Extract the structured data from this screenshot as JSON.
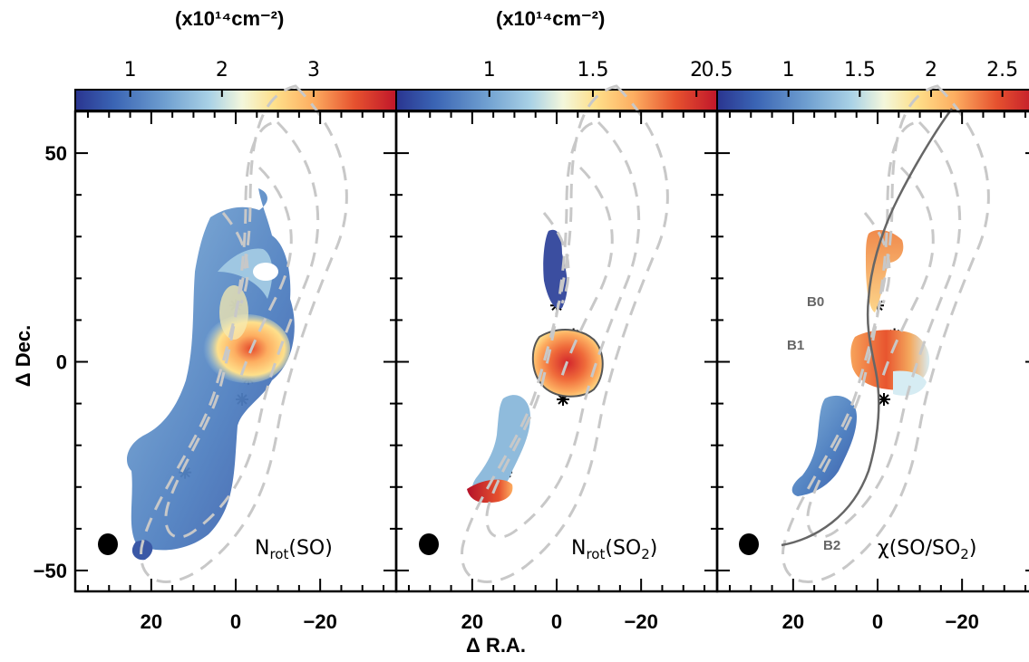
{
  "units": {
    "panel_1": "(x10¹⁴cm⁻²)",
    "panel_2": "(x10¹⁴cm⁻²)"
  },
  "axes": {
    "ylabel": "Δ Dec.",
    "xlabel": "Δ R.A."
  },
  "chart_data": [
    {
      "type": "heatmap",
      "label": "N_rot(SO)",
      "label_main": "N",
      "label_sub": "rot",
      "label_tail": "(SO)",
      "colorbar_ticks": [
        "1",
        "2",
        "3"
      ],
      "colorbar_range": [
        0.4,
        3.9
      ],
      "xlim": [
        38,
        -38
      ],
      "ylim": [
        -55,
        60
      ],
      "xticks": [
        "20",
        "0",
        "−20"
      ],
      "yticks": [
        "50",
        "0",
        "−50"
      ],
      "stars": [
        [
          0,
          13.5
        ],
        [
          1,
          3
        ],
        [
          -4,
          6.5
        ],
        [
          -8.5,
          0
        ],
        [
          -3,
          -4
        ],
        [
          -1.5,
          -9
        ],
        [
          12,
          -26.5
        ]
      ]
    },
    {
      "type": "heatmap",
      "label": "N_rot(SO2)",
      "label_main": "N",
      "label_sub": "rot",
      "label_tail": "(SO",
      "label_sub2": "2",
      "label_end": ")",
      "colorbar_ticks": [
        "1",
        "1.5",
        "2"
      ],
      "colorbar_range": [
        0.55,
        2.1
      ],
      "xlim": [
        38,
        -38
      ],
      "ylim": [
        -55,
        60
      ],
      "xticks": [
        "20",
        "0",
        "−20"
      ],
      "yticks": [
        "50",
        "0",
        "−50"
      ],
      "stars": [
        [
          0,
          13.5
        ],
        [
          1,
          3
        ],
        [
          -4,
          6.5
        ],
        [
          -8.5,
          0
        ],
        [
          -3,
          -4
        ],
        [
          -1.5,
          -9
        ],
        [
          12,
          -26.5
        ]
      ]
    },
    {
      "type": "heatmap",
      "label": "χ(SO/SO2)",
      "label_main": "χ(SO/SO",
      "label_sub": "2",
      "label_tail": ")",
      "colorbar_ticks": [
        "0.5",
        "1",
        "1.5",
        "2",
        "2.5"
      ],
      "colorbar_range": [
        0.5,
        2.75
      ],
      "xlim": [
        38,
        -38
      ],
      "ylim": [
        -55,
        60
      ],
      "xticks": [
        "20",
        "0",
        "−20"
      ],
      "yticks": [
        "50",
        "0",
        "−50"
      ],
      "regions": [
        "B0",
        "B1",
        "B2"
      ],
      "stars": [
        [
          0,
          13.5
        ],
        [
          1,
          3
        ],
        [
          -4,
          6.5
        ],
        [
          -8.5,
          0
        ],
        [
          -3,
          -4
        ],
        [
          -1.5,
          -9
        ],
        [
          12,
          -26.5
        ]
      ]
    }
  ],
  "colors": {
    "contour": "#c8c8c8",
    "curve": "#666666",
    "colormap": [
      "#2a3590",
      "#3a64b4",
      "#6f9fd0",
      "#aad2e6",
      "#f3f7dc",
      "#fee08b",
      "#fdae61",
      "#e6522f",
      "#c0162a"
    ]
  }
}
